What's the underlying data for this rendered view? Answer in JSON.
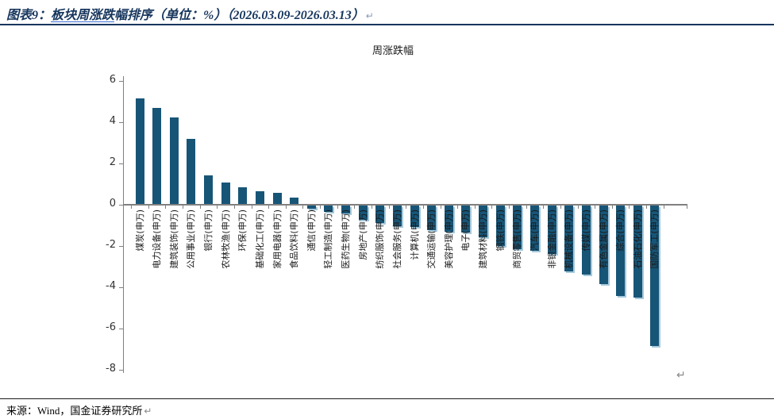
{
  "header": {
    "prefix": "图表9：",
    "underlined": "板块周涨跌",
    "suffix": "幅排序（单位：%）（2026.03.09-2026.03.13）",
    "pilcrow": "↵"
  },
  "chart_data": {
    "type": "bar",
    "title": "周涨跌幅",
    "unit": "%",
    "categories": [
      "煤炭(申万)",
      "电力设备(申万)",
      "建筑装饰(申万)",
      "公用事业(申万)",
      "银行(申万)",
      "农林牧渔(申万)",
      "环保(申万)",
      "基础化工(申万)",
      "家用电器(申万)",
      "食品饮料(申万)",
      "通信(申万)",
      "轻工制造(申万)",
      "医药生物(申万)",
      "房地产(申万)",
      "纺织服饰(申万)",
      "社会服务(申万)",
      "计算机(申万)",
      "交通运输(申万)",
      "美容护理(申万)",
      "电子(申万)",
      "建筑材料(申万)",
      "钢铁(申万)",
      "商贸零售(申万)",
      "汽车(申万)",
      "非银金融(申万)",
      "机械设备(申万)",
      "传媒(申万)",
      "有色金属(申万)",
      "综合(申万)",
      "石油石化(申万)",
      "国防军工(申万)"
    ],
    "values": [
      5.1,
      4.65,
      4.2,
      3.15,
      1.4,
      1.05,
      0.8,
      0.6,
      0.55,
      0.3,
      -0.15,
      -0.3,
      -0.4,
      -0.7,
      -0.85,
      -1.0,
      -1.05,
      -1.2,
      -1.25,
      -1.3,
      -1.55,
      -1.95,
      -2.1,
      -2.2,
      -2.35,
      -3.2,
      -3.35,
      -3.8,
      -4.4,
      -4.45,
      -6.8
    ],
    "xlabel": "",
    "ylabel": "",
    "ylim": [
      -8,
      6
    ],
    "yticks": [
      6,
      4,
      2,
      0,
      -2,
      -4,
      -6,
      -8
    ],
    "grid": false,
    "legend": false,
    "bar_color": "#175577",
    "bar_shadow_color": "#A6C9DB",
    "axis_color": "#808080"
  },
  "chart_pilcrow": "↵",
  "footer": {
    "text": "来源：Wind，国金证券研究所",
    "pilcrow": "↵"
  }
}
